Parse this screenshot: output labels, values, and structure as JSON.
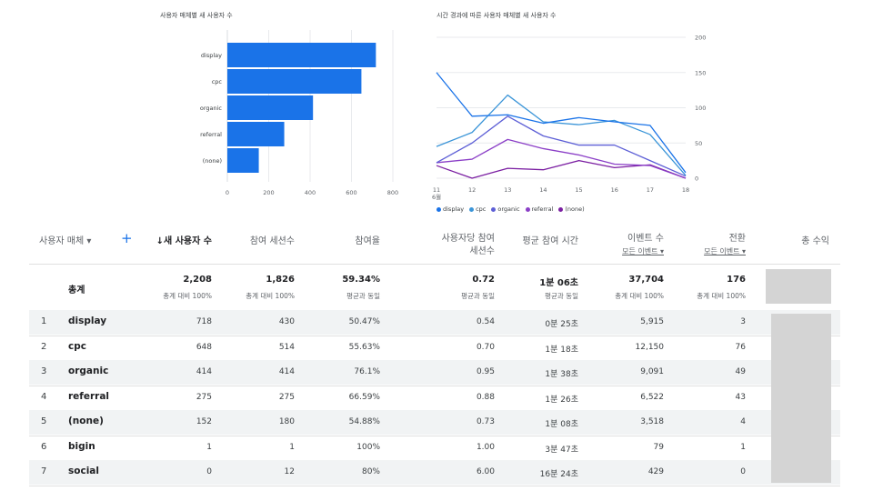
{
  "bar_chart": {
    "title": "사용자 매체별 새 사용자 수"
  },
  "line_chart": {
    "title": "시간 경과에 따른 사용자 매체별 새 사용자 수",
    "month_label": "6월"
  },
  "chart_data": [
    {
      "type": "bar",
      "orientation": "horizontal",
      "title": "사용자 매체별 새 사용자 수",
      "categories": [
        "display",
        "cpc",
        "organic",
        "referral",
        "(none)"
      ],
      "values": [
        718,
        648,
        414,
        275,
        152
      ],
      "xlim": [
        0,
        800
      ],
      "xticks": [
        "0",
        "200",
        "400",
        "600",
        "800"
      ],
      "color": "#1a73e8"
    },
    {
      "type": "line",
      "title": "시간 경과에 따른 사용자 매체별 새 사용자 수",
      "x": [
        "11",
        "12",
        "13",
        "14",
        "15",
        "16",
        "17",
        "18"
      ],
      "ylim": [
        0,
        200
      ],
      "yticks": [
        "0",
        "50",
        "100",
        "150",
        "200"
      ],
      "y_axis_position": "right",
      "series": [
        {
          "name": "display",
          "color": "#1a73e8",
          "values": [
            150,
            88,
            90,
            78,
            86,
            80,
            75,
            8
          ]
        },
        {
          "name": "cpc",
          "color": "#3b95d8",
          "values": [
            45,
            65,
            118,
            80,
            76,
            82,
            62,
            4
          ]
        },
        {
          "name": "organic",
          "color": "#5d5fd6",
          "values": [
            22,
            50,
            88,
            60,
            47,
            47,
            25,
            3
          ]
        },
        {
          "name": "referral",
          "color": "#8b3fc7",
          "values": [
            22,
            27,
            55,
            42,
            33,
            20,
            18,
            0
          ]
        },
        {
          "name": "(none)",
          "color": "#7b1fa2",
          "values": [
            18,
            0,
            14,
            12,
            25,
            15,
            19,
            0
          ]
        }
      ]
    }
  ],
  "table": {
    "headers": {
      "medium": "사용자 매체 ▾",
      "add": "+",
      "new_users": "↓새 사용자 수",
      "engaged_sessions": "참여 세션수",
      "engagement_rate": "참여율",
      "sessions_per_user_1": "사용자당 참여",
      "sessions_per_user_2": "세션수",
      "avg_time": "평균 참여 시간",
      "events": "이벤트 수",
      "events_sub": "모든 이벤트 ▾",
      "conversions": "전환",
      "conversions_sub": "모든 이벤트 ▾",
      "revenue": "총 수익"
    },
    "totals": {
      "label": "총계",
      "new_users": "2,208",
      "new_users_sub": "총계 대비 100%",
      "engaged_sessions": "1,826",
      "engaged_sessions_sub": "총계 대비 100%",
      "engagement_rate": "59.34%",
      "engagement_rate_sub": "평균과 동일",
      "sessions_per_user": "0.72",
      "sessions_per_user_sub": "평균과 동일",
      "avg_time": "1분 06초",
      "avg_time_sub": "평균과 동일",
      "events": "37,704",
      "events_sub": "총계 대비 100%",
      "conversions": "176",
      "conversions_sub": "총계 대비 100%"
    },
    "rows": [
      {
        "idx": "1",
        "medium": "display",
        "new_users": "718",
        "engaged": "430",
        "rate": "50.47%",
        "spu": "0.54",
        "time": "0분 25초",
        "events": "5,915",
        "conv": "3"
      },
      {
        "idx": "2",
        "medium": "cpc",
        "new_users": "648",
        "engaged": "514",
        "rate": "55.63%",
        "spu": "0.70",
        "time": "1분 18초",
        "events": "12,150",
        "conv": "76"
      },
      {
        "idx": "3",
        "medium": "organic",
        "new_users": "414",
        "engaged": "414",
        "rate": "76.1%",
        "spu": "0.95",
        "time": "1분 38초",
        "events": "9,091",
        "conv": "49"
      },
      {
        "idx": "4",
        "medium": "referral",
        "new_users": "275",
        "engaged": "275",
        "rate": "66.59%",
        "spu": "0.88",
        "time": "1분 26초",
        "events": "6,522",
        "conv": "43"
      },
      {
        "idx": "5",
        "medium": "(none)",
        "new_users": "152",
        "engaged": "180",
        "rate": "54.88%",
        "spu": "0.73",
        "time": "1분 08초",
        "events": "3,518",
        "conv": "4"
      },
      {
        "idx": "6",
        "medium": "bigin",
        "new_users": "1",
        "engaged": "1",
        "rate": "100%",
        "spu": "1.00",
        "time": "3분 47초",
        "events": "79",
        "conv": "1"
      },
      {
        "idx": "7",
        "medium": "social",
        "new_users": "0",
        "engaged": "12",
        "rate": "80%",
        "spu": "6.00",
        "time": "16분 24초",
        "events": "429",
        "conv": "0"
      }
    ]
  }
}
